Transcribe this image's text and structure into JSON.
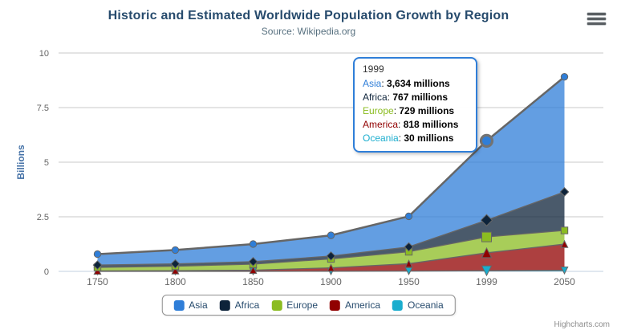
{
  "chart": {
    "title": "Historic and Estimated Worldwide Population Growth by Region",
    "subtitle": "Source: Wikipedia.org",
    "y_axis_title": "Billions",
    "credits": "Highcharts.com"
  },
  "icons": {
    "export_menu": "hamburger-menu-icon"
  },
  "colors": {
    "title": "#274b6d",
    "axis_label": "#666666",
    "axis_line": "#C0D0E0",
    "gridline": "#C8C8C8",
    "series_outline": "#666666",
    "tooltip_border": "#2f7ed8",
    "y_axis_title": "#4572A7"
  },
  "chart_data": {
    "type": "area",
    "stacking": "normal",
    "title": "Historic and Estimated Worldwide Population Growth by Region",
    "subtitle": "Source: Wikipedia.org",
    "categories": [
      "1750",
      "1800",
      "1850",
      "1900",
      "1950",
      "1999",
      "2050"
    ],
    "unit": "millions",
    "ylabel": "Billions",
    "xlabel": "",
    "yticks": [
      0,
      2.5,
      5,
      7.5,
      10
    ],
    "ylim_billions": [
      0,
      10
    ],
    "grid": true,
    "legend_position": "bottom",
    "series": [
      {
        "name": "Asia",
        "color": "#2f7ed8",
        "marker": "circle",
        "values": [
          502,
          635,
          809,
          947,
          1402,
          3634,
          5268
        ]
      },
      {
        "name": "Africa",
        "color": "#0d233a",
        "marker": "diamond",
        "values": [
          106,
          107,
          111,
          133,
          221,
          767,
          1766
        ]
      },
      {
        "name": "Europe",
        "color": "#8bbc21",
        "marker": "square",
        "values": [
          163,
          203,
          276,
          408,
          547,
          729,
          628
        ]
      },
      {
        "name": "America",
        "color": "#910000",
        "marker": "triangle",
        "values": [
          18,
          31,
          54,
          156,
          339,
          818,
          1201
        ]
      },
      {
        "name": "Oceania",
        "color": "#1aadce",
        "marker": "triangle-down",
        "values": [
          2,
          2,
          2,
          6,
          13,
          30,
          46
        ]
      }
    ],
    "stacked_totals_billions": [
      0.791,
      0.978,
      1.252,
      1.65,
      2.522,
      5.978,
      8.909
    ]
  },
  "tooltip": {
    "header": "1999",
    "hover_category_index": 5,
    "hover_series": "Asia",
    "rows": [
      {
        "name": "Asia",
        "color": "#2f7ed8",
        "value": "3,634 millions"
      },
      {
        "name": "Africa",
        "color": "#0d233a",
        "value": "767 millions"
      },
      {
        "name": "Europe",
        "color": "#8bbc21",
        "value": "729 millions"
      },
      {
        "name": "America",
        "color": "#910000",
        "value": "818 millions"
      },
      {
        "name": "Oceania",
        "color": "#1aadce",
        "value": "30 millions"
      }
    ]
  }
}
